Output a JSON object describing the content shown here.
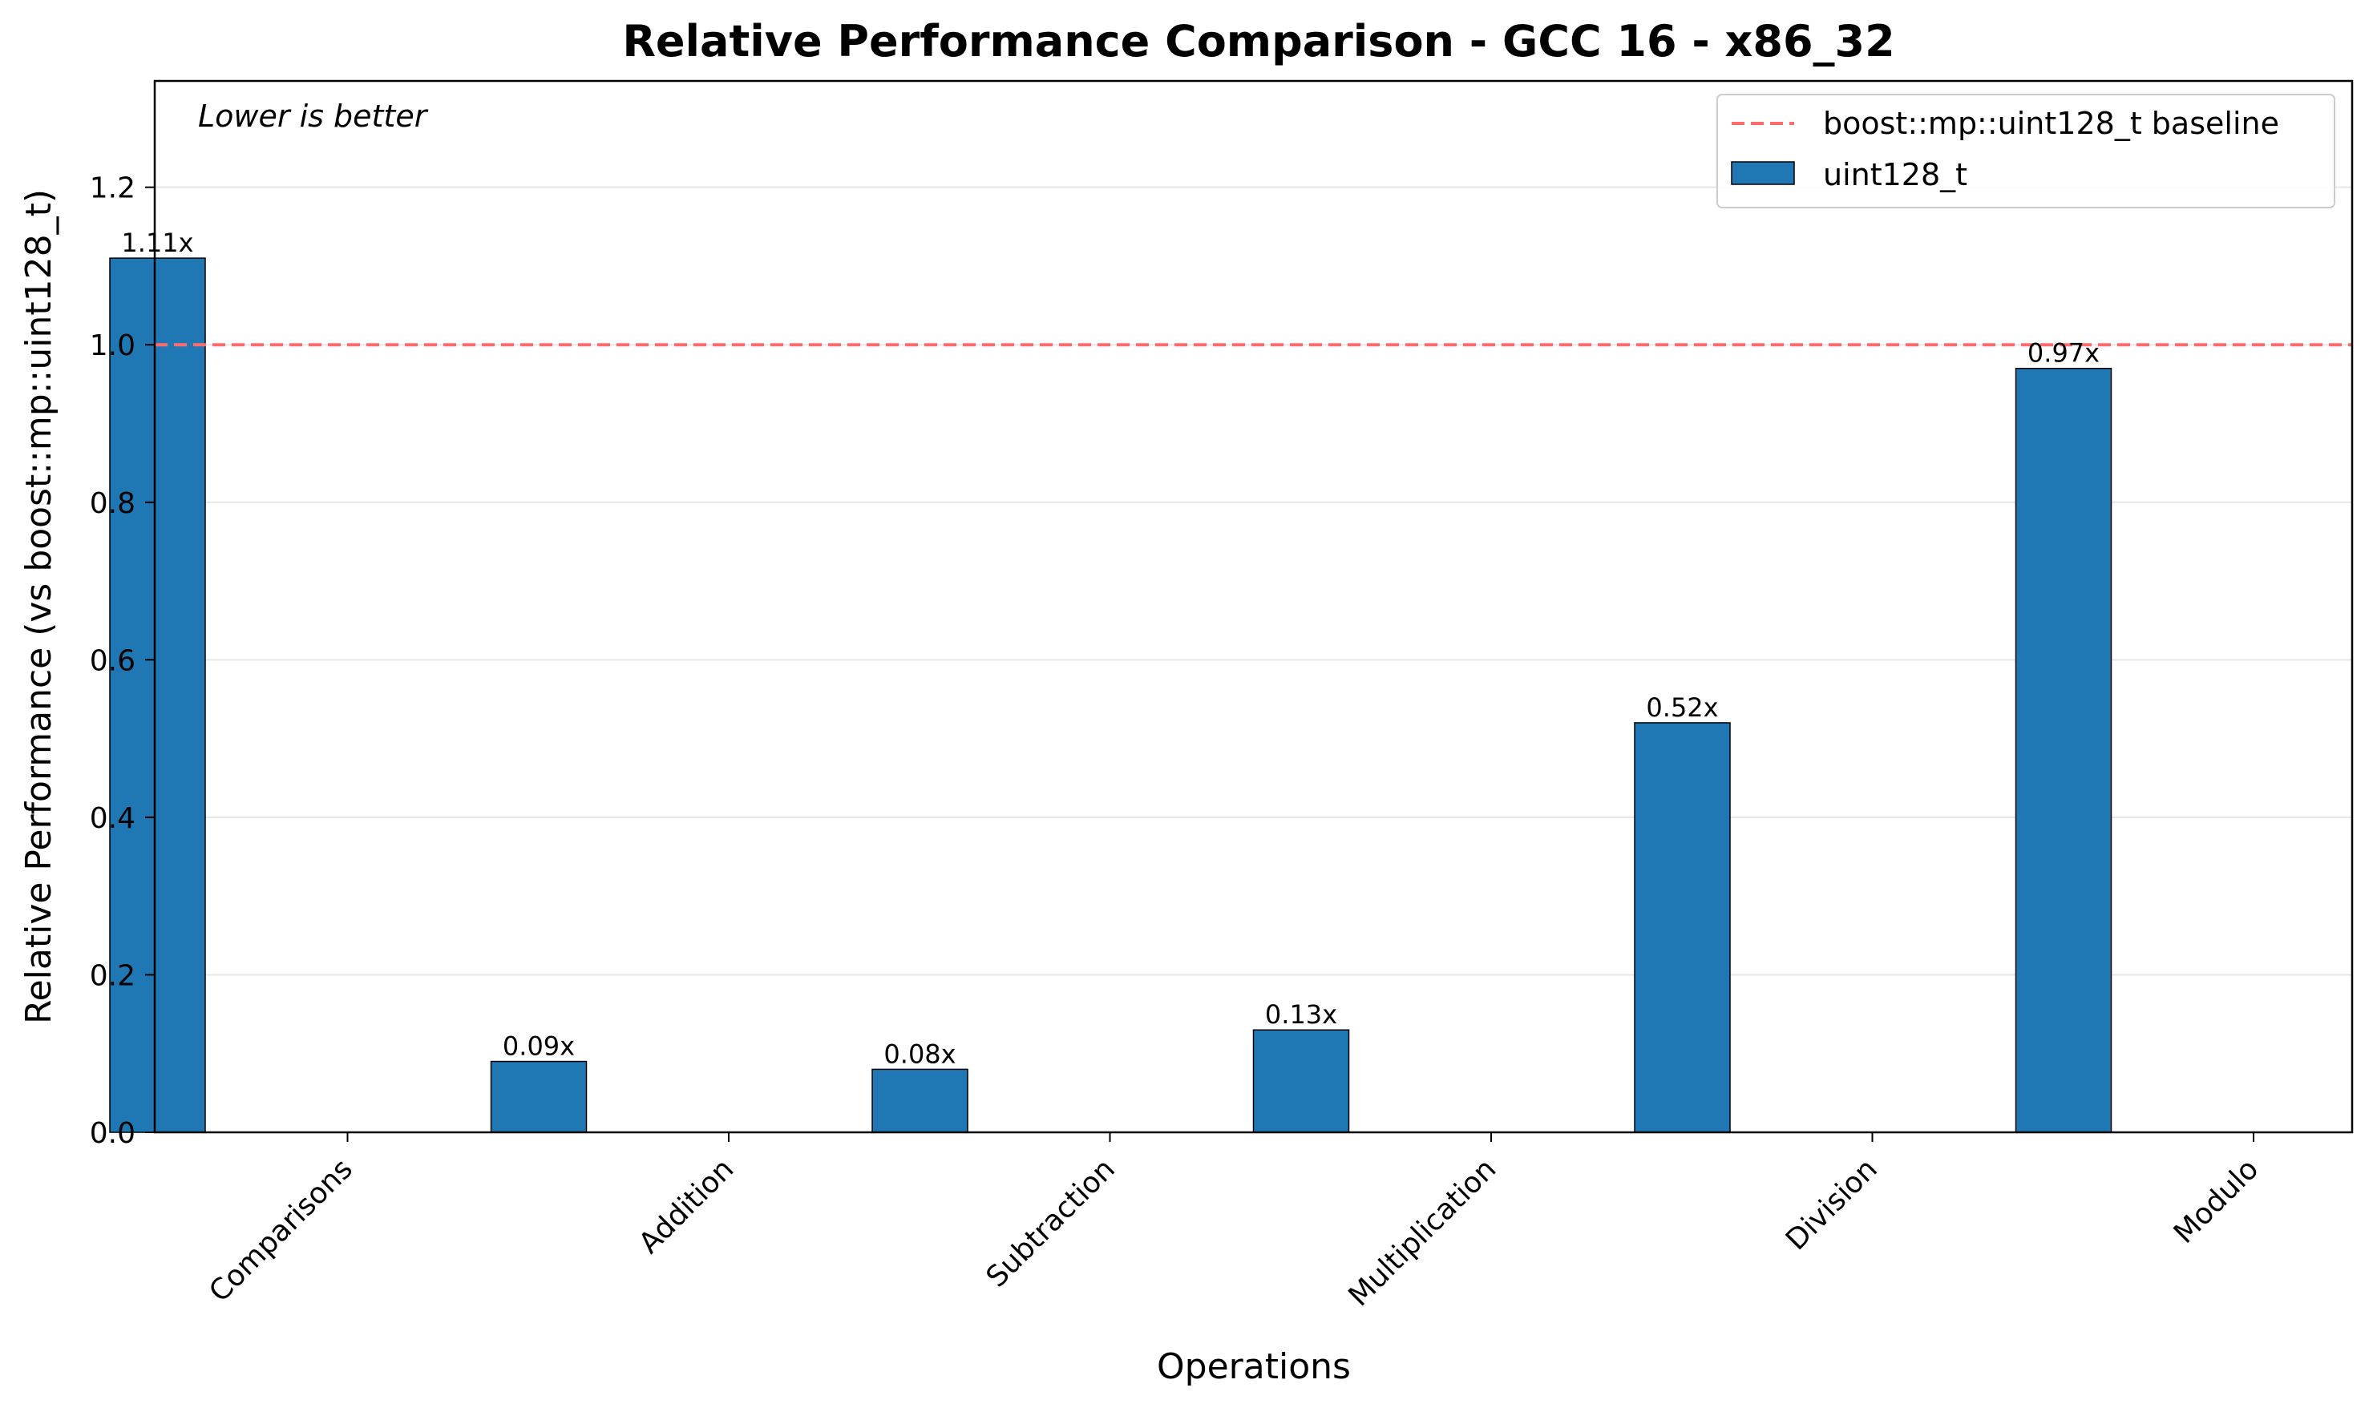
{
  "chart_data": {
    "type": "bar",
    "title": "Relative Performance Comparison - GCC 16 - x86_32",
    "annotation": "Lower is better",
    "xlabel": "Operations",
    "ylabel": "Relative Performance (vs boost::mp::uint128_t)",
    "categories": [
      "Comparisons",
      "Addition",
      "Subtraction",
      "Multiplication",
      "Division",
      "Modulo"
    ],
    "series": [
      {
        "name": "uint128_t",
        "values": [
          1.11,
          0.09,
          0.08,
          0.13,
          0.52,
          0.97
        ],
        "labels": [
          "1.11x",
          "0.09x",
          "0.08x",
          "0.13x",
          "0.52x",
          "0.97x"
        ],
        "color": "#1f77b4"
      }
    ],
    "baseline": {
      "name": "boost::mp::uint128_t baseline",
      "value": 1.0,
      "color": "#ff6b6b",
      "style": "dashed"
    },
    "yticks": [
      "0.0",
      "0.2",
      "0.4",
      "0.6",
      "0.8",
      "1.0",
      "1.2"
    ],
    "ylim": [
      0,
      1.335
    ],
    "grid": "horizontal",
    "legend_position": "top-right",
    "tick_label_rotation": "45"
  }
}
